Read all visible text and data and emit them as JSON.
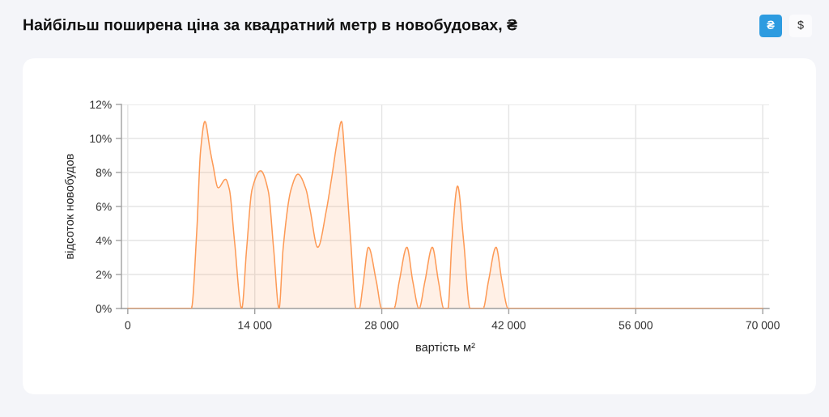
{
  "chart_data": {
    "type": "area",
    "title": "Найбільш поширена ціна за квадратний метр в новобудовах, ₴",
    "xlabel": "вартість м²",
    "ylabel": "відсоток новобудов",
    "annotations": [
      "₴",
      "$"
    ],
    "x": [
      0,
      5500,
      7000,
      7600,
      8030,
      8500,
      9080,
      9370,
      9970,
      10780,
      11200,
      11760,
      12560,
      13100,
      13700,
      14650,
      15490,
      16080,
      16680,
      17120,
      18000,
      18760,
      19650,
      20100,
      20940,
      21900,
      22480,
      23080,
      23560,
      23980,
      24570,
      25170,
      25520,
      25910,
      26530,
      27400,
      28000,
      29340,
      29930,
      30770,
      31420,
      32110,
      32760,
      33570,
      34250,
      34850,
      35290,
      35740,
      36360,
      37020,
      37740,
      39170,
      39760,
      40600,
      41250,
      41940,
      43190,
      70000
    ],
    "series": [
      {
        "color": "#fd9a56",
        "values": [
          0,
          0,
          0,
          4.5,
          9.3,
          11.0,
          9.3,
          8.5,
          7.1,
          7.6,
          7.0,
          4.0,
          0,
          3.5,
          7.0,
          8.1,
          6.9,
          3.5,
          0,
          3.5,
          7.0,
          7.9,
          7.0,
          5.8,
          3.6,
          5.8,
          7.7,
          9.8,
          11.0,
          8.5,
          4.0,
          0,
          0,
          1.3,
          3.6,
          1.6,
          0,
          0,
          1.6,
          3.6,
          1.6,
          0,
          1.6,
          3.6,
          1.6,
          0,
          0,
          4.0,
          7.2,
          4.0,
          0,
          0,
          1.6,
          3.6,
          1.6,
          0,
          0,
          0
        ]
      }
    ],
    "xlim": [
      -700,
      70700
    ],
    "xticks": [
      0,
      {
        "value": 14000,
        "label": "14 000"
      },
      {
        "value": 28000,
        "label": "28 000"
      },
      {
        "value": 42000,
        "label": "42 000"
      },
      {
        "value": 56000,
        "label": "56 000"
      },
      {
        "value": 70000,
        "label": "70 000"
      }
    ],
    "ylim": [
      0,
      12
    ],
    "yticks": [
      {
        "value": 0,
        "label": "0%"
      },
      {
        "value": 2,
        "label": "2%"
      },
      {
        "value": 4,
        "label": "4%"
      },
      {
        "value": 6,
        "label": "6%"
      },
      {
        "value": 8,
        "label": "8%"
      },
      {
        "value": 10,
        "label": "10%"
      },
      {
        "value": 12,
        "label": "12%"
      }
    ],
    "grid": true
  }
}
